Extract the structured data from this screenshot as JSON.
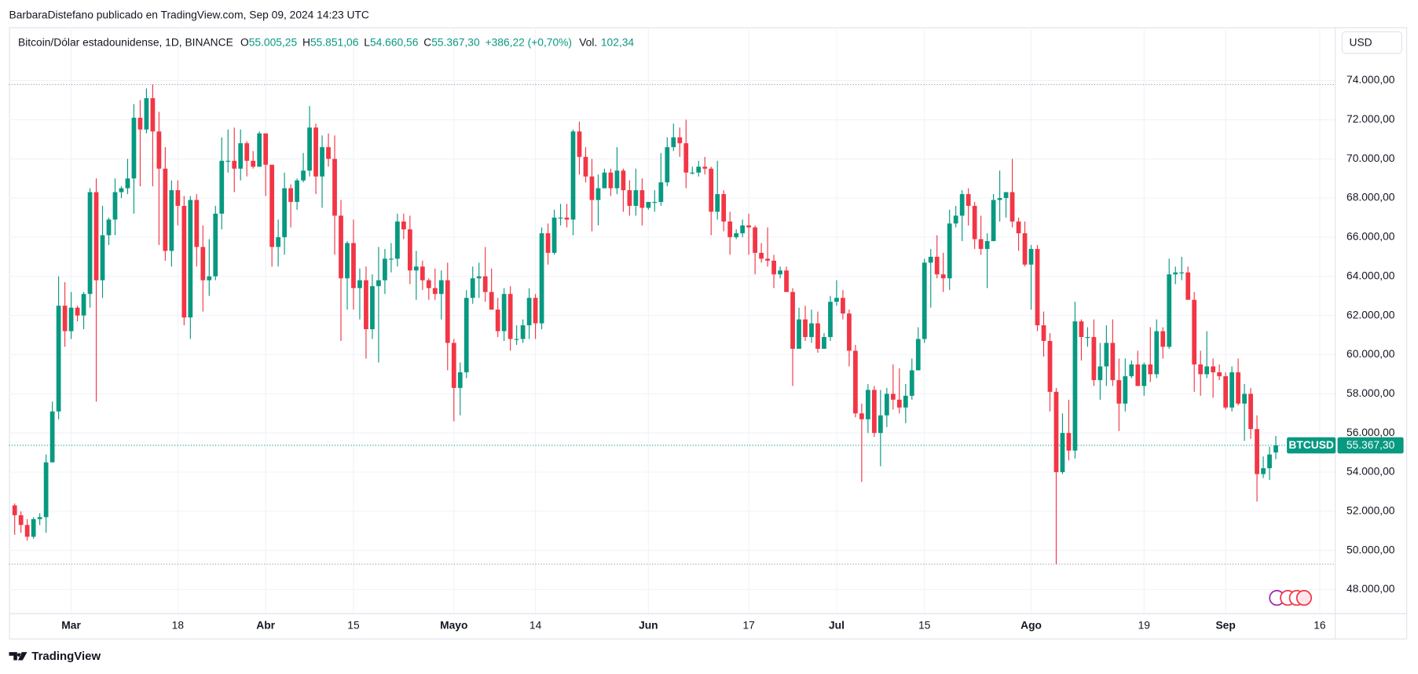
{
  "attribution": "BarbaraDistefano publicado en TradingView.com, Sep 09, 2024 14:23 UTC",
  "brand": "TradingView",
  "chart_data": {
    "type": "candlestick",
    "legend": {
      "symbol": "Bitcoin/Dólar estadounidense, 1D, BINANCE",
      "fields": [
        {
          "key": "O",
          "label": "55.005,25"
        },
        {
          "key": "H",
          "label": "55.851,06"
        },
        {
          "key": "L",
          "label": "54.660,56"
        },
        {
          "key": "C",
          "label": "55.367,30"
        }
      ],
      "change": "+386,22 (+0,70%)",
      "volume_key": "Vol.",
      "volume": "102,34"
    },
    "currency": "USD",
    "last_price": {
      "name": "BTCUSD",
      "label": "55.367,30"
    },
    "up_color": "#089981",
    "down_color": "#f23645",
    "xlim": [
      -0.9,
      210.4
    ],
    "xticks": [
      {
        "value": 9,
        "label": "Mar"
      },
      {
        "value": 26,
        "label": "18"
      },
      {
        "value": 40,
        "label": "Abr"
      },
      {
        "value": 54,
        "label": "15"
      },
      {
        "value": 70,
        "label": "Mayo"
      },
      {
        "value": 83,
        "label": "14"
      },
      {
        "value": 101,
        "label": "Jun"
      },
      {
        "value": 117,
        "label": "17"
      },
      {
        "value": 131,
        "label": "Jul"
      },
      {
        "value": 145,
        "label": "15"
      },
      {
        "value": 162,
        "label": "Ago"
      },
      {
        "value": 180,
        "label": "19"
      },
      {
        "value": 193,
        "label": "Sep"
      },
      {
        "value": 208,
        "label": "16"
      }
    ],
    "ylim": [
      46930,
      76490
    ],
    "yticks": [
      {
        "value": 48000,
        "label": "48.000,00"
      },
      {
        "value": 50000,
        "label": "50.000,00"
      },
      {
        "value": 52000,
        "label": "52.000,00"
      },
      {
        "value": 54000,
        "label": "54.000,00"
      },
      {
        "value": 56000,
        "label": "56.000,00"
      },
      {
        "value": 58000,
        "label": "58.000,00"
      },
      {
        "value": 60000,
        "label": "60.000,00"
      },
      {
        "value": 62000,
        "label": "62.000,00"
      },
      {
        "value": 64000,
        "label": "64.000,00"
      },
      {
        "value": 66000,
        "label": "66.000,00"
      },
      {
        "value": 68000,
        "label": "68.000,00"
      },
      {
        "value": 70000,
        "label": "70.000,00"
      },
      {
        "value": 72000,
        "label": "72.000,00"
      },
      {
        "value": 74000,
        "label": "74.000,00"
      }
    ],
    "grid": true,
    "candles": [
      [
        52300,
        52400,
        50800,
        51800
      ],
      [
        51800,
        52000,
        50900,
        51300
      ],
      [
        51300,
        51600,
        50500,
        50700
      ],
      [
        50700,
        51700,
        50600,
        51600
      ],
      [
        51600,
        51900,
        51300,
        51700
      ],
      [
        51700,
        54900,
        50900,
        54500
      ],
      [
        54500,
        57600,
        54500,
        57100
      ],
      [
        57100,
        64000,
        56700,
        62500
      ],
      [
        62500,
        63700,
        60400,
        61200
      ],
      [
        61200,
        63200,
        60800,
        62400
      ],
      [
        62400,
        62500,
        61700,
        62000
      ],
      [
        62000,
        63200,
        61300,
        63100
      ],
      [
        63100,
        68500,
        62400,
        68300
      ],
      [
        68300,
        69000,
        57600,
        63800
      ],
      [
        63800,
        67600,
        62900,
        66100
      ],
      [
        66100,
        67000,
        65600,
        66900
      ],
      [
        66900,
        69000,
        66100,
        68300
      ],
      [
        68300,
        68600,
        68000,
        68500
      ],
      [
        68500,
        70000,
        68200,
        69000
      ],
      [
        69000,
        72800,
        67200,
        72100
      ],
      [
        72100,
        73000,
        68600,
        71500
      ],
      [
        71500,
        73600,
        71300,
        73100
      ],
      [
        73100,
        73800,
        68600,
        71400
      ],
      [
        71400,
        72400,
        65600,
        69500
      ],
      [
        69500,
        70600,
        64800,
        65300
      ],
      [
        65300,
        68900,
        64500,
        68400
      ],
      [
        68400,
        68900,
        66600,
        67600
      ],
      [
        67600,
        68100,
        61500,
        61900
      ],
      [
        61900,
        68100,
        60800,
        67900
      ],
      [
        67900,
        68200,
        64500,
        65500
      ],
      [
        65500,
        66600,
        62200,
        63800
      ],
      [
        63800,
        65900,
        63000,
        64000
      ],
      [
        64000,
        67600,
        63800,
        67200
      ],
      [
        67200,
        71100,
        66400,
        69900
      ],
      [
        69900,
        71500,
        69300,
        69900
      ],
      [
        69900,
        71600,
        68300,
        69500
      ],
      [
        69500,
        71500,
        68900,
        70800
      ],
      [
        70800,
        70900,
        69100,
        69900
      ],
      [
        69900,
        70400,
        69500,
        69600
      ],
      [
        69600,
        71400,
        69600,
        71300
      ],
      [
        71300,
        71300,
        68100,
        69700
      ],
      [
        69700,
        69700,
        64500,
        65500
      ],
      [
        65500,
        66900,
        64500,
        66000
      ],
      [
        66000,
        69300,
        65100,
        68500
      ],
      [
        68500,
        68700,
        66500,
        67800
      ],
      [
        67800,
        69000,
        67400,
        68900
      ],
      [
        68900,
        70300,
        68800,
        69400
      ],
      [
        69400,
        72700,
        69100,
        71600
      ],
      [
        71600,
        71800,
        68200,
        69100
      ],
      [
        69100,
        71200,
        67500,
        70600
      ],
      [
        70600,
        71300,
        69600,
        70000
      ],
      [
        70000,
        71200,
        65100,
        67100
      ],
      [
        67100,
        67900,
        60700,
        63900
      ],
      [
        63900,
        65800,
        62300,
        65700
      ],
      [
        65700,
        66900,
        62300,
        63400
      ],
      [
        63400,
        64400,
        61800,
        63800
      ],
      [
        63800,
        64500,
        59800,
        61300
      ],
      [
        61300,
        64100,
        60800,
        63500
      ],
      [
        63500,
        65500,
        59600,
        63800
      ],
      [
        63800,
        65400,
        63100,
        64900
      ],
      [
        64900,
        65700,
        64200,
        64900
      ],
      [
        64900,
        67200,
        64500,
        66800
      ],
      [
        66800,
        67200,
        65900,
        66400
      ],
      [
        66400,
        67100,
        63600,
        64300
      ],
      [
        64300,
        65300,
        62800,
        64500
      ],
      [
        64500,
        64800,
        63300,
        63800
      ],
      [
        63800,
        63900,
        62800,
        63400
      ],
      [
        63400,
        64400,
        62800,
        63100
      ],
      [
        63100,
        64300,
        61800,
        63800
      ],
      [
        63800,
        64700,
        59200,
        60600
      ],
      [
        60600,
        60800,
        56600,
        58300
      ],
      [
        58300,
        59600,
        56900,
        59100
      ],
      [
        59100,
        63300,
        58800,
        62900
      ],
      [
        62900,
        64500,
        62600,
        63900
      ],
      [
        63900,
        64700,
        62900,
        64000
      ],
      [
        64000,
        65500,
        62700,
        63200
      ],
      [
        63200,
        64400,
        62300,
        62300
      ],
      [
        62300,
        62900,
        60900,
        61200
      ],
      [
        61200,
        63400,
        60700,
        63100
      ],
      [
        63100,
        63500,
        60200,
        60800
      ],
      [
        60800,
        61500,
        60500,
        60800
      ],
      [
        60800,
        61800,
        60600,
        61500
      ],
      [
        61500,
        63400,
        60800,
        62900
      ],
      [
        62900,
        63100,
        60800,
        61600
      ],
      [
        61600,
        66500,
        61300,
        66200
      ],
      [
        66200,
        66700,
        64600,
        65200
      ],
      [
        65200,
        67400,
        65100,
        67000
      ],
      [
        67000,
        67700,
        66600,
        67000
      ],
      [
        67000,
        67700,
        66500,
        66900
      ],
      [
        66900,
        71500,
        66100,
        71400
      ],
      [
        71400,
        71900,
        69200,
        70100
      ],
      [
        70100,
        70600,
        68800,
        69100
      ],
      [
        69100,
        70000,
        66300,
        67900
      ],
      [
        67900,
        69200,
        66600,
        68500
      ],
      [
        68500,
        69500,
        68500,
        69300
      ],
      [
        69300,
        69500,
        68100,
        68500
      ],
      [
        68500,
        70600,
        68200,
        69400
      ],
      [
        69400,
        69500,
        67300,
        68400
      ],
      [
        68400,
        68900,
        67100,
        67600
      ],
      [
        67600,
        69500,
        67100,
        68400
      ],
      [
        68400,
        69000,
        66600,
        67500
      ],
      [
        67500,
        67800,
        67400,
        67800
      ],
      [
        67800,
        68400,
        67300,
        67800
      ],
      [
        67800,
        70300,
        67600,
        68800
      ],
      [
        68800,
        71100,
        68600,
        70600
      ],
      [
        70600,
        71800,
        70400,
        71100
      ],
      [
        71100,
        71600,
        70100,
        70800
      ],
      [
        70800,
        72000,
        68500,
        69300
      ],
      [
        69300,
        69600,
        69200,
        69300
      ],
      [
        69300,
        69900,
        69100,
        69600
      ],
      [
        69600,
        70100,
        69200,
        69500
      ],
      [
        69500,
        69600,
        66100,
        67300
      ],
      [
        67300,
        69900,
        66900,
        68200
      ],
      [
        68200,
        68400,
        66300,
        66800
      ],
      [
        66800,
        67300,
        65100,
        66000
      ],
      [
        66000,
        66400,
        65900,
        66200
      ],
      [
        66200,
        66900,
        66000,
        66600
      ],
      [
        66600,
        67200,
        65100,
        66500
      ],
      [
        66500,
        66600,
        64100,
        65200
      ],
      [
        65200,
        65700,
        64700,
        64900
      ],
      [
        64900,
        66500,
        64500,
        64800
      ],
      [
        64800,
        65100,
        63400,
        64100
      ],
      [
        64100,
        64500,
        63900,
        64300
      ],
      [
        64300,
        64500,
        63200,
        63200
      ],
      [
        63200,
        63400,
        58400,
        60300
      ],
      [
        60300,
        62400,
        60300,
        61800
      ],
      [
        61800,
        62500,
        60700,
        60900
      ],
      [
        60900,
        62300,
        60600,
        61600
      ],
      [
        61600,
        62200,
        60100,
        60300
      ],
      [
        60300,
        61100,
        60300,
        60900
      ],
      [
        60900,
        63000,
        60700,
        62700
      ],
      [
        62700,
        63800,
        62500,
        62900
      ],
      [
        62900,
        63300,
        61800,
        62100
      ],
      [
        62100,
        62300,
        59400,
        60200
      ],
      [
        60200,
        60500,
        56800,
        57000
      ],
      [
        57000,
        57500,
        53500,
        56700
      ],
      [
        56700,
        58500,
        56000,
        58200
      ],
      [
        58200,
        58400,
        55800,
        56000
      ],
      [
        56000,
        58200,
        54300,
        56900
      ],
      [
        56900,
        58300,
        56300,
        58000
      ],
      [
        58000,
        59500,
        57200,
        57700
      ],
      [
        57700,
        59300,
        57000,
        57300
      ],
      [
        57300,
        58500,
        56500,
        57900
      ],
      [
        57900,
        59800,
        57700,
        59200
      ],
      [
        59200,
        61400,
        59200,
        60800
      ],
      [
        60800,
        64900,
        60600,
        64700
      ],
      [
        64700,
        65400,
        62400,
        65000
      ],
      [
        65000,
        66100,
        63900,
        64100
      ],
      [
        64100,
        65200,
        63200,
        63900
      ],
      [
        63900,
        67400,
        63300,
        66700
      ],
      [
        66700,
        67600,
        66500,
        67100
      ],
      [
        67100,
        68400,
        65800,
        68200
      ],
      [
        68200,
        68500,
        66600,
        67600
      ],
      [
        67600,
        67800,
        65400,
        65900
      ],
      [
        65900,
        67100,
        65100,
        65400
      ],
      [
        65400,
        66200,
        63400,
        65800
      ],
      [
        65800,
        68200,
        65800,
        67900
      ],
      [
        67900,
        69400,
        66800,
        68000
      ],
      [
        68000,
        68300,
        67000,
        68300
      ],
      [
        68300,
        70000,
        66500,
        66800
      ],
      [
        66800,
        67000,
        65300,
        66200
      ],
      [
        66200,
        66800,
        64500,
        64600
      ],
      [
        64600,
        65600,
        62300,
        65400
      ],
      [
        65400,
        65600,
        61200,
        61500
      ],
      [
        61500,
        62200,
        59900,
        60700
      ],
      [
        60700,
        61100,
        57100,
        58100
      ],
      [
        58100,
        58300,
        49300,
        54000
      ],
      [
        54000,
        57000,
        53900,
        56000
      ],
      [
        56000,
        57700,
        54600,
        55100
      ],
      [
        55100,
        62700,
        54700,
        61700
      ],
      [
        61700,
        61800,
        59700,
        60900
      ],
      [
        60900,
        61400,
        60400,
        60900
      ],
      [
        60900,
        61800,
        58400,
        58700
      ],
      [
        58700,
        60600,
        57700,
        59400
      ],
      [
        59400,
        61500,
        58400,
        60600
      ],
      [
        60600,
        61800,
        58400,
        58700
      ],
      [
        58700,
        59800,
        56100,
        57500
      ],
      [
        57500,
        59800,
        57100,
        58900
      ],
      [
        58900,
        59700,
        58800,
        59500
      ],
      [
        59500,
        60200,
        58400,
        58400
      ],
      [
        58400,
        59600,
        57900,
        59500
      ],
      [
        59500,
        61400,
        58600,
        59000
      ],
      [
        59000,
        61800,
        58800,
        61200
      ],
      [
        61200,
        61400,
        59800,
        60400
      ],
      [
        60400,
        64900,
        60300,
        64100
      ],
      [
        64100,
        64500,
        63600,
        64200
      ],
      [
        64200,
        65000,
        63800,
        64200
      ],
      [
        64200,
        64500,
        62800,
        62800
      ],
      [
        62800,
        63200,
        58100,
        59500
      ],
      [
        59500,
        60200,
        57900,
        59000
      ],
      [
        59000,
        61200,
        58800,
        59400
      ],
      [
        59400,
        59800,
        57800,
        59100
      ],
      [
        59100,
        59500,
        58700,
        58900
      ],
      [
        58900,
        59100,
        57200,
        57300
      ],
      [
        57300,
        59400,
        57100,
        59100
      ],
      [
        59100,
        59800,
        57400,
        57500
      ],
      [
        57500,
        58500,
        55600,
        58000
      ],
      [
        58000,
        58300,
        55700,
        56200
      ],
      [
        56200,
        56900,
        52500,
        53900
      ],
      [
        53900,
        54800,
        53700,
        54200
      ],
      [
        54200,
        55300,
        53600,
        54900
      ],
      [
        55005.25,
        55851.06,
        54660.56,
        55367.3
      ]
    ]
  }
}
